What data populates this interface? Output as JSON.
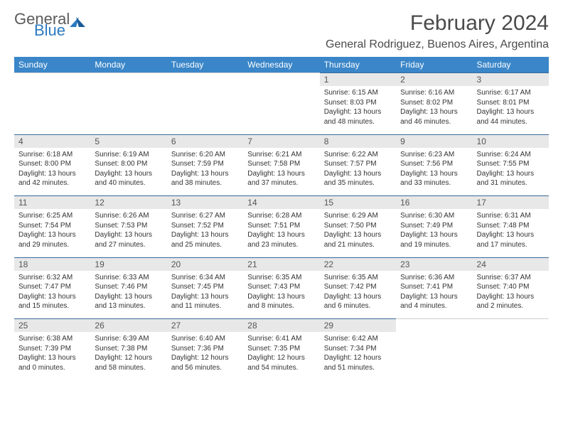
{
  "logo": {
    "word1": "General",
    "word2": "Blue"
  },
  "title": "February 2024",
  "location": "General Rodriguez, Buenos Aires, Argentina",
  "colors": {
    "header_bg": "#3a86c8",
    "header_fg": "#ffffff",
    "daynum_bg": "#e8e8e8",
    "border": "#3a6a9a",
    "text": "#333333",
    "logo_gray": "#5a5a5a",
    "logo_blue": "#2b79c2"
  },
  "weekdays": [
    "Sunday",
    "Monday",
    "Tuesday",
    "Wednesday",
    "Thursday",
    "Friday",
    "Saturday"
  ],
  "weeks": [
    [
      null,
      null,
      null,
      null,
      {
        "n": "1",
        "sr": "Sunrise: 6:15 AM",
        "ss": "Sunset: 8:03 PM",
        "d1": "Daylight: 13 hours",
        "d2": "and 48 minutes."
      },
      {
        "n": "2",
        "sr": "Sunrise: 6:16 AM",
        "ss": "Sunset: 8:02 PM",
        "d1": "Daylight: 13 hours",
        "d2": "and 46 minutes."
      },
      {
        "n": "3",
        "sr": "Sunrise: 6:17 AM",
        "ss": "Sunset: 8:01 PM",
        "d1": "Daylight: 13 hours",
        "d2": "and 44 minutes."
      }
    ],
    [
      {
        "n": "4",
        "sr": "Sunrise: 6:18 AM",
        "ss": "Sunset: 8:00 PM",
        "d1": "Daylight: 13 hours",
        "d2": "and 42 minutes."
      },
      {
        "n": "5",
        "sr": "Sunrise: 6:19 AM",
        "ss": "Sunset: 8:00 PM",
        "d1": "Daylight: 13 hours",
        "d2": "and 40 minutes."
      },
      {
        "n": "6",
        "sr": "Sunrise: 6:20 AM",
        "ss": "Sunset: 7:59 PM",
        "d1": "Daylight: 13 hours",
        "d2": "and 38 minutes."
      },
      {
        "n": "7",
        "sr": "Sunrise: 6:21 AM",
        "ss": "Sunset: 7:58 PM",
        "d1": "Daylight: 13 hours",
        "d2": "and 37 minutes."
      },
      {
        "n": "8",
        "sr": "Sunrise: 6:22 AM",
        "ss": "Sunset: 7:57 PM",
        "d1": "Daylight: 13 hours",
        "d2": "and 35 minutes."
      },
      {
        "n": "9",
        "sr": "Sunrise: 6:23 AM",
        "ss": "Sunset: 7:56 PM",
        "d1": "Daylight: 13 hours",
        "d2": "and 33 minutes."
      },
      {
        "n": "10",
        "sr": "Sunrise: 6:24 AM",
        "ss": "Sunset: 7:55 PM",
        "d1": "Daylight: 13 hours",
        "d2": "and 31 minutes."
      }
    ],
    [
      {
        "n": "11",
        "sr": "Sunrise: 6:25 AM",
        "ss": "Sunset: 7:54 PM",
        "d1": "Daylight: 13 hours",
        "d2": "and 29 minutes."
      },
      {
        "n": "12",
        "sr": "Sunrise: 6:26 AM",
        "ss": "Sunset: 7:53 PM",
        "d1": "Daylight: 13 hours",
        "d2": "and 27 minutes."
      },
      {
        "n": "13",
        "sr": "Sunrise: 6:27 AM",
        "ss": "Sunset: 7:52 PM",
        "d1": "Daylight: 13 hours",
        "d2": "and 25 minutes."
      },
      {
        "n": "14",
        "sr": "Sunrise: 6:28 AM",
        "ss": "Sunset: 7:51 PM",
        "d1": "Daylight: 13 hours",
        "d2": "and 23 minutes."
      },
      {
        "n": "15",
        "sr": "Sunrise: 6:29 AM",
        "ss": "Sunset: 7:50 PM",
        "d1": "Daylight: 13 hours",
        "d2": "and 21 minutes."
      },
      {
        "n": "16",
        "sr": "Sunrise: 6:30 AM",
        "ss": "Sunset: 7:49 PM",
        "d1": "Daylight: 13 hours",
        "d2": "and 19 minutes."
      },
      {
        "n": "17",
        "sr": "Sunrise: 6:31 AM",
        "ss": "Sunset: 7:48 PM",
        "d1": "Daylight: 13 hours",
        "d2": "and 17 minutes."
      }
    ],
    [
      {
        "n": "18",
        "sr": "Sunrise: 6:32 AM",
        "ss": "Sunset: 7:47 PM",
        "d1": "Daylight: 13 hours",
        "d2": "and 15 minutes."
      },
      {
        "n": "19",
        "sr": "Sunrise: 6:33 AM",
        "ss": "Sunset: 7:46 PM",
        "d1": "Daylight: 13 hours",
        "d2": "and 13 minutes."
      },
      {
        "n": "20",
        "sr": "Sunrise: 6:34 AM",
        "ss": "Sunset: 7:45 PM",
        "d1": "Daylight: 13 hours",
        "d2": "and 11 minutes."
      },
      {
        "n": "21",
        "sr": "Sunrise: 6:35 AM",
        "ss": "Sunset: 7:43 PM",
        "d1": "Daylight: 13 hours",
        "d2": "and 8 minutes."
      },
      {
        "n": "22",
        "sr": "Sunrise: 6:35 AM",
        "ss": "Sunset: 7:42 PM",
        "d1": "Daylight: 13 hours",
        "d2": "and 6 minutes."
      },
      {
        "n": "23",
        "sr": "Sunrise: 6:36 AM",
        "ss": "Sunset: 7:41 PM",
        "d1": "Daylight: 13 hours",
        "d2": "and 4 minutes."
      },
      {
        "n": "24",
        "sr": "Sunrise: 6:37 AM",
        "ss": "Sunset: 7:40 PM",
        "d1": "Daylight: 13 hours",
        "d2": "and 2 minutes."
      }
    ],
    [
      {
        "n": "25",
        "sr": "Sunrise: 6:38 AM",
        "ss": "Sunset: 7:39 PM",
        "d1": "Daylight: 13 hours",
        "d2": "and 0 minutes."
      },
      {
        "n": "26",
        "sr": "Sunrise: 6:39 AM",
        "ss": "Sunset: 7:38 PM",
        "d1": "Daylight: 12 hours",
        "d2": "and 58 minutes."
      },
      {
        "n": "27",
        "sr": "Sunrise: 6:40 AM",
        "ss": "Sunset: 7:36 PM",
        "d1": "Daylight: 12 hours",
        "d2": "and 56 minutes."
      },
      {
        "n": "28",
        "sr": "Sunrise: 6:41 AM",
        "ss": "Sunset: 7:35 PM",
        "d1": "Daylight: 12 hours",
        "d2": "and 54 minutes."
      },
      {
        "n": "29",
        "sr": "Sunrise: 6:42 AM",
        "ss": "Sunset: 7:34 PM",
        "d1": "Daylight: 12 hours",
        "d2": "and 51 minutes."
      },
      null,
      null
    ]
  ]
}
